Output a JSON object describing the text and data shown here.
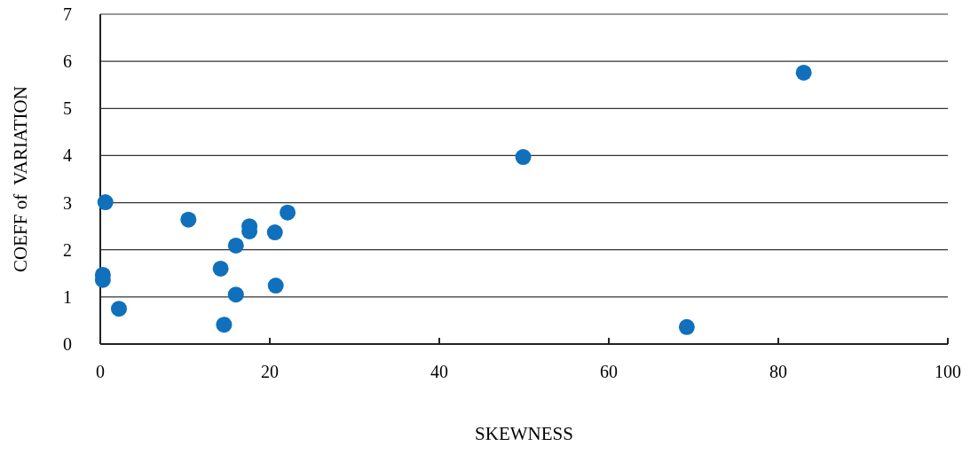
{
  "chart_data": {
    "type": "scatter",
    "xlabel": "SKEWNESS",
    "ylabel": "COEFF of  VARIATION",
    "x": [
      0.6,
      0.3,
      0.3,
      2.2,
      10.4,
      14.2,
      14.6,
      16.0,
      16.0,
      17.6,
      17.6,
      20.6,
      20.7,
      22.1,
      49.9,
      69.2,
      83.0
    ],
    "series": [
      {
        "color": "#1070bb",
        "values": [
          3.01,
          1.47,
          1.36,
          0.75,
          2.64,
          1.6,
          0.41,
          2.09,
          1.05,
          2.5,
          2.39,
          2.37,
          1.24,
          2.79,
          3.97,
          0.36,
          5.76
        ]
      }
    ],
    "xlim": [
      0,
      100
    ],
    "xticks": [
      0,
      20,
      40,
      60,
      80,
      100
    ],
    "ylim": [
      0,
      7
    ],
    "yticks": [
      0,
      1,
      2,
      3,
      4,
      5,
      6,
      7
    ],
    "grid": "y",
    "marker": "circle"
  }
}
